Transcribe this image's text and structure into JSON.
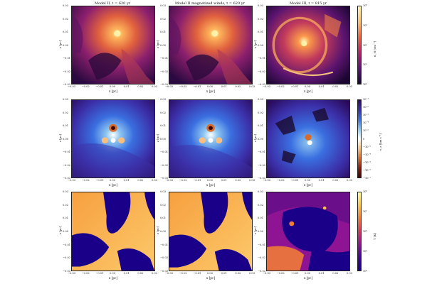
{
  "titles": [
    "Model II, t = 620 yr",
    "Model II magnetized winds, t = 620 yr",
    "Model III, t = 815 yr"
  ],
  "axes": {
    "xlabel": "x [pc]",
    "ylabel": "z [pc]",
    "xticks": [
      "−0.03",
      "−0.02",
      "−0.01",
      "0.00",
      "0.01",
      "0.02",
      "0.03"
    ],
    "yticks": [
      "0.03",
      "0.02",
      "0.01",
      "0.00",
      "−0.01",
      "−0.02",
      "−0.03"
    ]
  },
  "colorbars": [
    {
      "label": "n_H [cm⁻³]",
      "ticks": [
        "10⁴",
        "10³",
        "10²",
        "10¹",
        "10⁰"
      ],
      "colors": [
        "#fff4b0",
        "#fdbf6f",
        "#f0603a",
        "#b5206a",
        "#5c1278",
        "#120a30"
      ]
    },
    {
      "label": "v_z [km s⁻¹]",
      "ticks": [
        "10⁻¹",
        "10⁻²",
        "10⁻³",
        "10⁻⁴",
        "10⁻⁵",
        "0",
        "−10⁻⁵",
        "−10⁻⁴",
        "−10⁻³",
        "−10⁻²",
        "−10⁻¹"
      ],
      "colors": [
        "#2a0a5a",
        "#3b2fa8",
        "#3a6fe0",
        "#8fc7f0",
        "#ffffff",
        "#f7c080",
        "#d86a2a",
        "#8a1e0e",
        "#3a0505"
      ]
    },
    {
      "label": "T [K]",
      "ticks": [
        "10⁸",
        "10⁷",
        "10⁶",
        "10⁵",
        "10⁴"
      ],
      "colors": [
        "#fffca0",
        "#fcc245",
        "#f07a36",
        "#d3365f",
        "#8e1493",
        "#3d0696",
        "#1a0088"
      ]
    }
  ]
}
